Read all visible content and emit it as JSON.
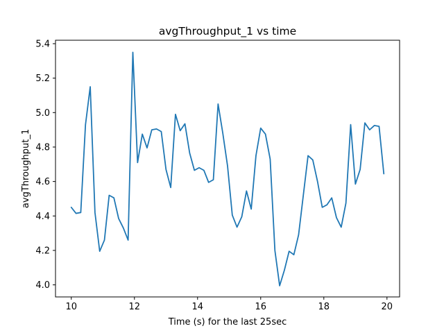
{
  "chart_data": {
    "type": "line",
    "title": "avgThroughput_1 vs time",
    "xlabel": "Time (s) for the last 25sec",
    "ylabel": "avgThroughput_1",
    "xlim": [
      9.5,
      20.4
    ],
    "ylim": [
      3.93,
      5.42
    ],
    "xticks": [
      10,
      12,
      14,
      16,
      18,
      20
    ],
    "yticks": [
      4.0,
      4.2,
      4.4,
      4.6,
      4.8,
      5.0,
      5.2,
      5.4
    ],
    "grid": false,
    "line_color": "#1f77b4",
    "series": [
      {
        "x": [
          10.0,
          10.15,
          10.3,
          10.45,
          10.6,
          10.75,
          10.9,
          11.05,
          11.2,
          11.35,
          11.5,
          11.65,
          11.8,
          11.95,
          12.1,
          12.25,
          12.4,
          12.55,
          12.7,
          12.85,
          13.0,
          13.15,
          13.3,
          13.45,
          13.6,
          13.75,
          13.9,
          14.05,
          14.2,
          14.35,
          14.5,
          14.65,
          14.8,
          14.95,
          15.1,
          15.25,
          15.4,
          15.55,
          15.7,
          15.85,
          16.0,
          16.15,
          16.3,
          16.45,
          16.6,
          16.75,
          16.9,
          17.05,
          17.2,
          17.35,
          17.5,
          17.65,
          17.8,
          17.95,
          18.1,
          18.25,
          18.4,
          18.55,
          18.7,
          18.85,
          19.0,
          19.15,
          19.3,
          19.45,
          19.6,
          19.75,
          19.9
        ],
        "y": [
          4.45,
          4.415,
          4.42,
          4.93,
          5.15,
          4.42,
          4.195,
          4.26,
          4.52,
          4.505,
          4.385,
          4.33,
          4.26,
          5.35,
          4.71,
          4.875,
          4.795,
          4.9,
          4.905,
          4.89,
          4.67,
          4.565,
          4.99,
          4.895,
          4.935,
          4.765,
          4.665,
          4.68,
          4.665,
          4.595,
          4.61,
          5.05,
          4.88,
          4.69,
          4.405,
          4.335,
          4.395,
          4.545,
          4.44,
          4.75,
          4.91,
          4.875,
          4.73,
          4.2,
          3.995,
          4.085,
          4.195,
          4.175,
          4.29,
          4.52,
          4.75,
          4.725,
          4.6,
          4.45,
          4.465,
          4.505,
          4.39,
          4.335,
          4.475,
          4.93,
          4.585,
          4.67,
          4.94,
          4.9,
          4.925,
          4.92,
          4.645
        ]
      }
    ]
  }
}
